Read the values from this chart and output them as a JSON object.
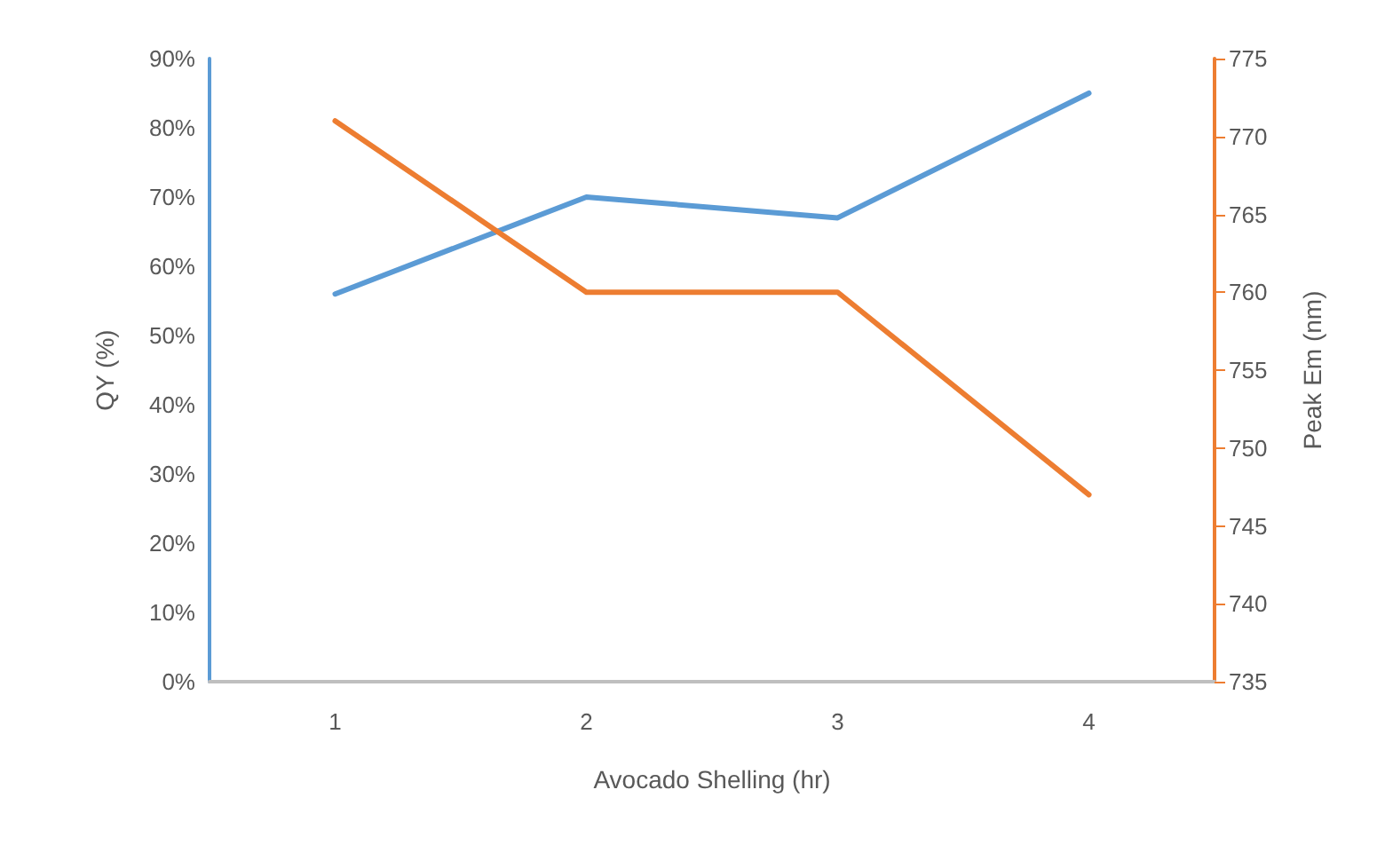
{
  "chart_data": {
    "type": "line",
    "xlabel": "Avocado Shelling (hr)",
    "ylabel": "QY (%)",
    "y2label": "Peak Em (nm)",
    "categories": [
      "1",
      "2",
      "3",
      "4"
    ],
    "series": [
      {
        "color": "#5b9bd5",
        "values": [
          56,
          70,
          67,
          85
        ]
      },
      {
        "color": "#ed7d31",
        "values": [
          771,
          760,
          760,
          747
        ],
        "axis": "y2"
      }
    ],
    "ylim": [
      0,
      90
    ],
    "yticks": [
      {
        "value": 0,
        "label": "0%"
      },
      {
        "value": 10,
        "label": "10%"
      },
      {
        "value": 20,
        "label": "20%"
      },
      {
        "value": 30,
        "label": "30%"
      },
      {
        "value": 40,
        "label": "40%"
      },
      {
        "value": 50,
        "label": "50%"
      },
      {
        "value": 60,
        "label": "60%"
      },
      {
        "value": 70,
        "label": "70%"
      },
      {
        "value": 80,
        "label": "80%"
      },
      {
        "value": 90,
        "label": "90%"
      }
    ],
    "y2lim": [
      735,
      775
    ],
    "y2ticks": [
      735,
      740,
      745,
      750,
      755,
      760,
      765,
      770,
      775
    ],
    "grid": false,
    "marker": "none",
    "line_style": "solid"
  }
}
